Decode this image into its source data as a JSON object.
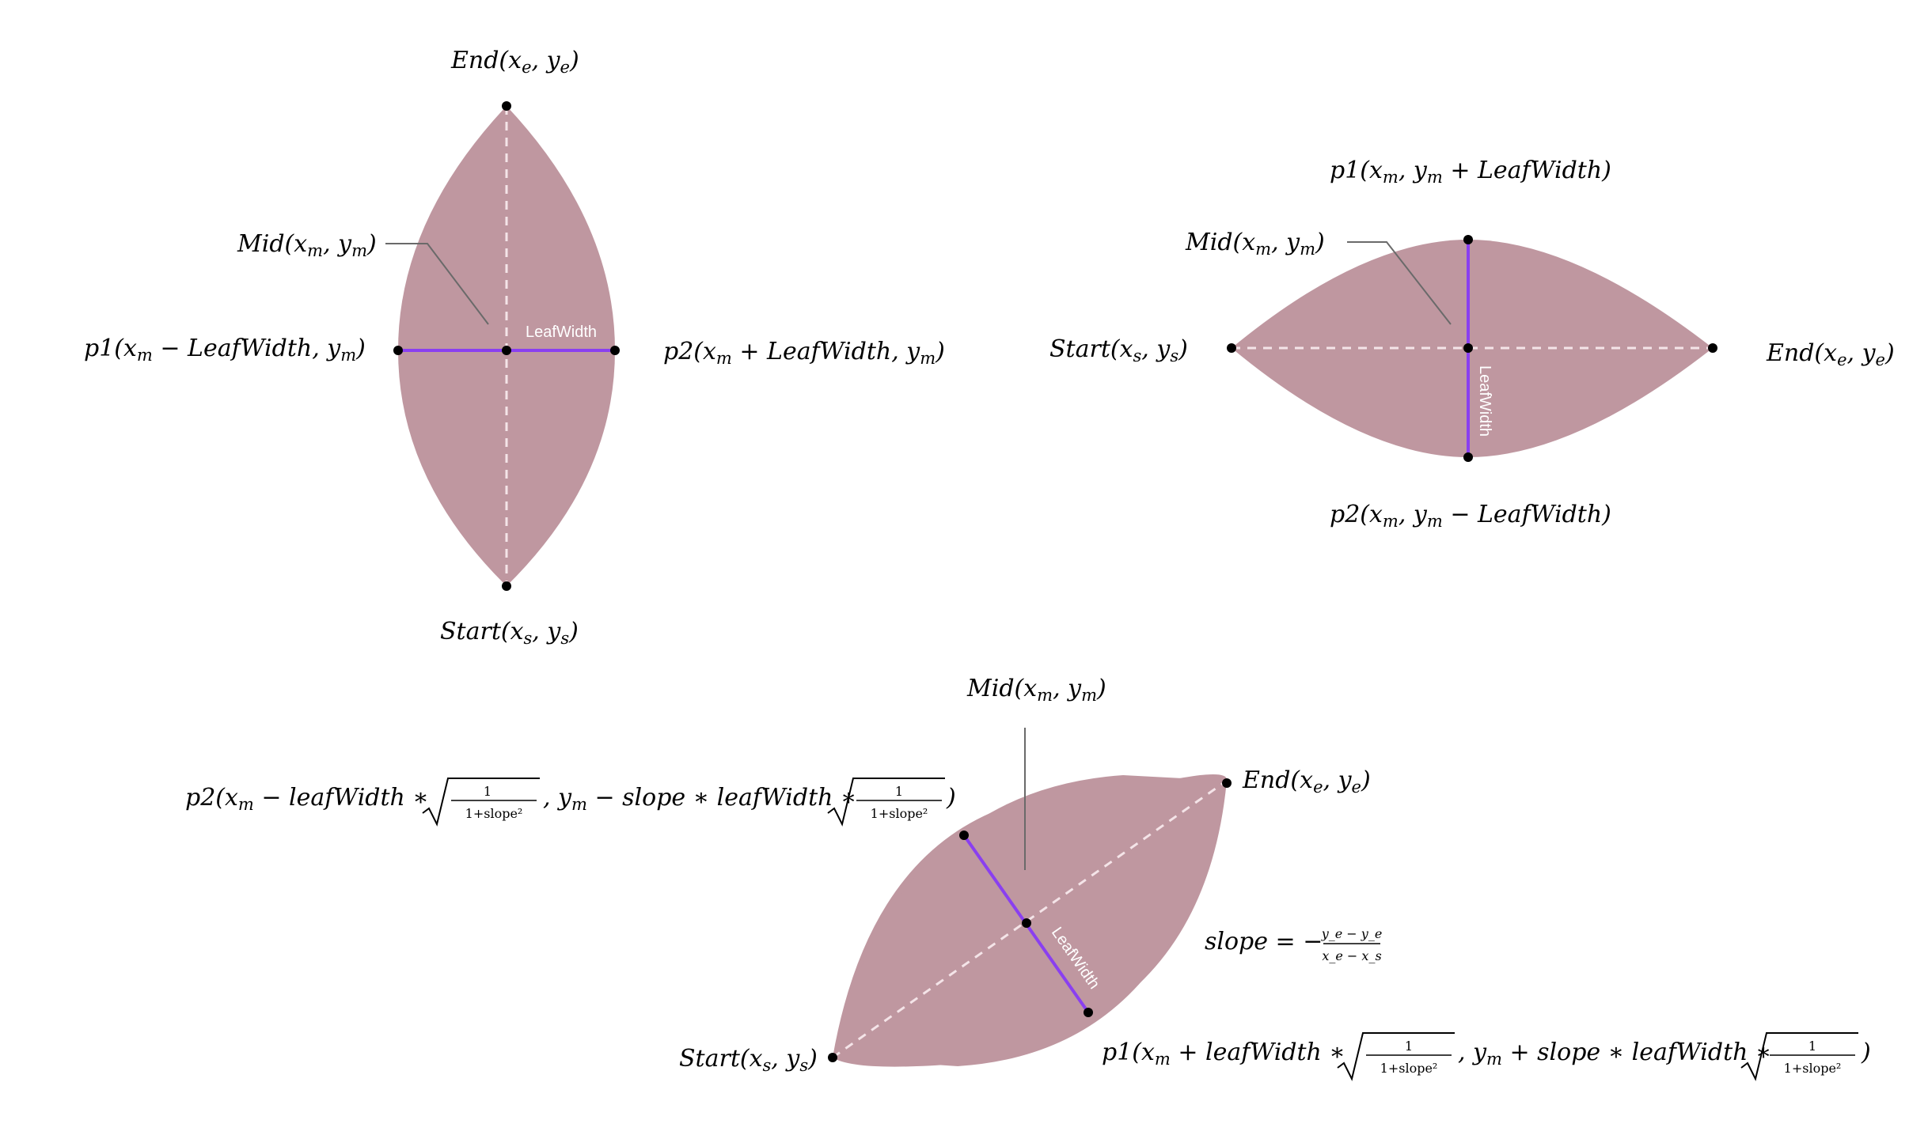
{
  "diagram1": {
    "end_label": "End(x",
    "end_sub1": "e",
    "end_mid": ", y",
    "end_sub2": "e",
    "end_close": ")",
    "start_label": "Start(x",
    "start_sub1": "s",
    "start_mid": ", y",
    "start_sub2": "s",
    "start_close": ")",
    "mid_label": "Mid(x",
    "mid_sub1": "m",
    "mid_mid": ", y",
    "mid_sub2": "m",
    "mid_close": ")",
    "p1_label": "p1(x",
    "p1_sub1": "m",
    "p1_rest": " − LeafWidth, y",
    "p1_sub2": "m",
    "p1_close": ")",
    "p2_label": "p2(x",
    "p2_sub1": "m",
    "p2_rest": " + LeafWidth, y",
    "p2_sub2": "m",
    "p2_close": ")",
    "width_label": "LeafWidth"
  },
  "diagram2": {
    "p1_label": "p1(x",
    "p1_sub1": "m",
    "p1_mid": ", y",
    "p1_sub2": "m",
    "p1_rest": " + LeafWidth)",
    "p2_label": "p2(x",
    "p2_sub1": "m",
    "p2_mid": ", y",
    "p2_sub2": "m",
    "p2_rest": " − LeafWidth)",
    "mid_label": "Mid(x",
    "mid_sub1": "m",
    "mid_mid": ", y",
    "mid_sub2": "m",
    "mid_close": ")",
    "start_label": "Start(x",
    "start_sub1": "s",
    "start_mid": ", y",
    "start_sub2": "s",
    "start_close": ")",
    "end_label": "End(x",
    "end_sub1": "e",
    "end_mid": ", y",
    "end_sub2": "e",
    "end_close": ")",
    "width_label": "LeafWidth"
  },
  "diagram3": {
    "mid_label": "Mid(x",
    "mid_sub1": "m",
    "mid_mid": ", y",
    "mid_sub2": "m",
    "mid_close": ")",
    "end_label": "End(x",
    "end_sub1": "e",
    "end_mid": ", y",
    "end_sub2": "e",
    "end_close": ")",
    "start_label": "Start(x",
    "start_sub1": "s",
    "start_mid": ", y",
    "start_sub2": "s",
    "start_close": ")",
    "p2_a": "p2(x",
    "p2_a_sub": "m",
    "p2_b": " − leafWidth ∗ ",
    "p2_c": ", y",
    "p2_c_sub": "m",
    "p2_d": " − slope ∗ leafWidth ∗ ",
    "p2_close": ")",
    "p1_a": "p1(x",
    "p1_a_sub": "m",
    "p1_b": " + leafWidth ∗ ",
    "p1_c": ", y",
    "p1_c_sub": "m",
    "p1_d": " + slope ∗ leafWidth ∗ ",
    "p1_close": ")",
    "frac_num": "1",
    "frac_den": "1+slope²",
    "slope_label": "slope = −",
    "slope_num": "y_e − y_e",
    "slope_den": "x_e − x_s",
    "width_label": "LeafWidth"
  }
}
